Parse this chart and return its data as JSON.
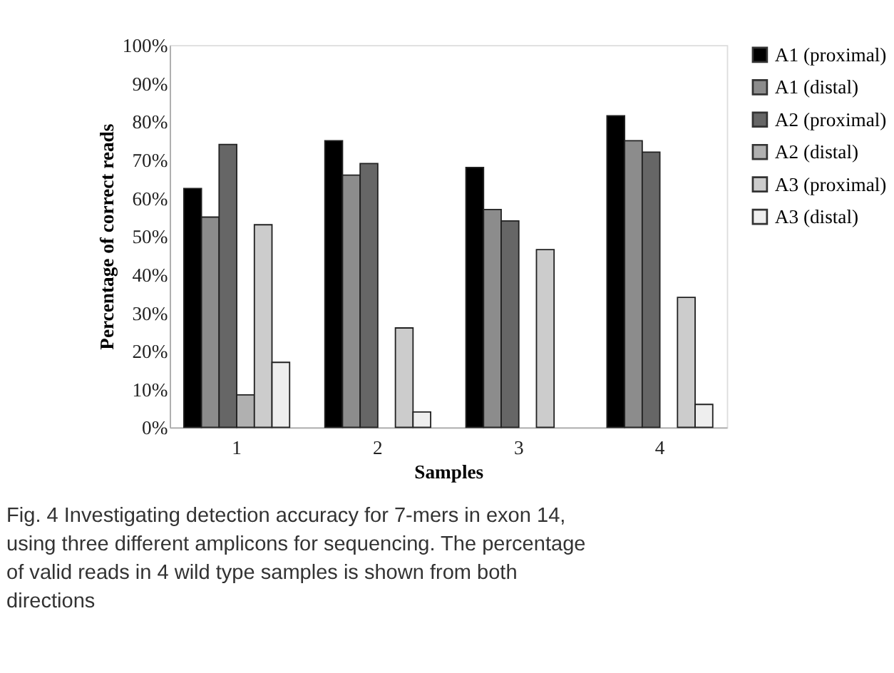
{
  "chart_data": {
    "type": "bar",
    "categories": [
      "1",
      "2",
      "3",
      "4"
    ],
    "series": [
      {
        "name": "A1 (proximal)",
        "color": "#000000",
        "values": [
          62.5,
          75,
          68,
          81.5
        ]
      },
      {
        "name": "A1 (distal)",
        "color": "#8c8c8c",
        "values": [
          55,
          66,
          57,
          75
        ]
      },
      {
        "name": "A2 (proximal)",
        "color": "#666666",
        "values": [
          74,
          69,
          54,
          72
        ]
      },
      {
        "name": "A2 (distal)",
        "color": "#b0b0b0",
        "values": [
          8.5,
          null,
          null,
          null
        ]
      },
      {
        "name": "A3 (proximal)",
        "color": "#cccccc",
        "values": [
          53,
          26,
          46.5,
          34
        ]
      },
      {
        "name": "A3 (distal)",
        "color": "#eeeeee",
        "values": [
          17,
          4,
          null,
          6
        ]
      }
    ],
    "xlabel": "Samples",
    "ylabel": "Percentage of correct reads",
    "ylim": [
      0,
      100
    ],
    "yticks": [
      {
        "value": 0,
        "label": "0%"
      },
      {
        "value": 10,
        "label": "10%"
      },
      {
        "value": 20,
        "label": "20%"
      },
      {
        "value": 30,
        "label": "30%"
      },
      {
        "value": 40,
        "label": "40%"
      },
      {
        "value": 50,
        "label": "50%"
      },
      {
        "value": 60,
        "label": "60%"
      },
      {
        "value": 70,
        "label": "70%"
      },
      {
        "value": 80,
        "label": "80%"
      },
      {
        "value": 90,
        "label": "90%"
      },
      {
        "value": 100,
        "label": "100%"
      }
    ],
    "grid": false,
    "legend": "right",
    "annotations": [
      "Fig. 4 Investigating detection accuracy for 7-mers in exon 14, using three different amplicons for sequencing. The percentage of valid reads in 4 wild type samples is shown from both directions"
    ]
  }
}
